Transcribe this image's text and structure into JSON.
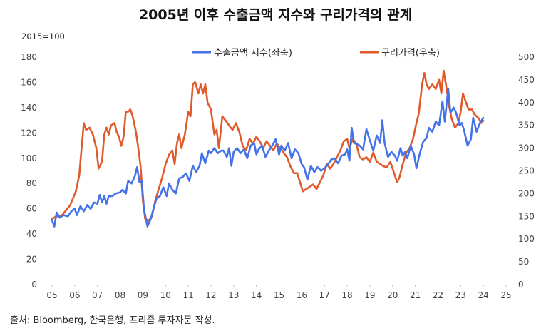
{
  "chart_data": {
    "type": "line",
    "title": "2005년 이후 수출금액 지수와 구리가격의 관계",
    "left_axis_unit": "2015=100",
    "source": "출처: Bloomberg, 한국은행, 프리즘 투자자문 작성.",
    "x_axis": {
      "range": [
        2005,
        2025
      ],
      "ticks": [
        "05",
        "06",
        "07",
        "08",
        "09",
        "10",
        "11",
        "12",
        "13",
        "14",
        "15",
        "16",
        "17",
        "18",
        "19",
        "20",
        "21",
        "22",
        "23",
        "24",
        "25"
      ]
    },
    "y_left": {
      "range": [
        0,
        180
      ],
      "ticks": [
        "0",
        "20",
        "40",
        "60",
        "80",
        "100",
        "120",
        "140",
        "160",
        "180"
      ]
    },
    "y_right": {
      "range": [
        0,
        500
      ],
      "ticks": [
        "0",
        "50",
        "100",
        "150",
        "200",
        "250",
        "300",
        "350",
        "400",
        "450",
        "500"
      ]
    },
    "legend": [
      "수출금액 지수(좌축)",
      "구리가격(우축)"
    ],
    "colors": {
      "export": "#4472E8",
      "copper": "#E05A2B"
    },
    "series": [
      {
        "name": "수출금액 지수(좌축)",
        "axis": "left",
        "points": [
          [
            2005.0,
            51
          ],
          [
            2005.1,
            46
          ],
          [
            2005.2,
            57
          ],
          [
            2005.35,
            53
          ],
          [
            2005.5,
            55
          ],
          [
            2005.7,
            54
          ],
          [
            2005.85,
            58
          ],
          [
            2006.0,
            60
          ],
          [
            2006.1,
            55
          ],
          [
            2006.25,
            62
          ],
          [
            2006.4,
            58
          ],
          [
            2006.55,
            63
          ],
          [
            2006.7,
            60
          ],
          [
            2006.85,
            65
          ],
          [
            2007.0,
            64
          ],
          [
            2007.1,
            71
          ],
          [
            2007.2,
            65
          ],
          [
            2007.3,
            70
          ],
          [
            2007.4,
            64
          ],
          [
            2007.5,
            70
          ],
          [
            2007.65,
            70
          ],
          [
            2007.8,
            72
          ],
          [
            2008.0,
            73
          ],
          [
            2008.1,
            75
          ],
          [
            2008.25,
            72
          ],
          [
            2008.35,
            82
          ],
          [
            2008.5,
            80
          ],
          [
            2008.65,
            86
          ],
          [
            2008.75,
            93
          ],
          [
            2008.85,
            81
          ],
          [
            2008.95,
            82
          ],
          [
            2009.05,
            60
          ],
          [
            2009.2,
            46
          ],
          [
            2009.35,
            52
          ],
          [
            2009.5,
            62
          ],
          [
            2009.6,
            68
          ],
          [
            2009.75,
            70
          ],
          [
            2009.9,
            77
          ],
          [
            2010.05,
            70
          ],
          [
            2010.15,
            80
          ],
          [
            2010.3,
            75
          ],
          [
            2010.45,
            72
          ],
          [
            2010.6,
            84
          ],
          [
            2010.75,
            85
          ],
          [
            2010.9,
            88
          ],
          [
            2011.05,
            82
          ],
          [
            2011.2,
            94
          ],
          [
            2011.35,
            89
          ],
          [
            2011.5,
            94
          ],
          [
            2011.6,
            104
          ],
          [
            2011.75,
            96
          ],
          [
            2011.9,
            106
          ],
          [
            2012.0,
            104
          ],
          [
            2012.15,
            108
          ],
          [
            2012.3,
            104
          ],
          [
            2012.45,
            106
          ],
          [
            2012.55,
            106
          ],
          [
            2012.7,
            101
          ],
          [
            2012.8,
            108
          ],
          [
            2012.9,
            94
          ],
          [
            2013.0,
            105
          ],
          [
            2013.15,
            108
          ],
          [
            2013.3,
            104
          ],
          [
            2013.45,
            107
          ],
          [
            2013.6,
            100
          ],
          [
            2013.75,
            110
          ],
          [
            2013.9,
            112
          ],
          [
            2014.0,
            103
          ],
          [
            2014.1,
            107
          ],
          [
            2014.25,
            110
          ],
          [
            2014.4,
            101
          ],
          [
            2014.55,
            106
          ],
          [
            2014.7,
            110
          ],
          [
            2014.85,
            115
          ],
          [
            2015.0,
            103
          ],
          [
            2015.1,
            110
          ],
          [
            2015.25,
            106
          ],
          [
            2015.4,
            112
          ],
          [
            2015.55,
            100
          ],
          [
            2015.7,
            107
          ],
          [
            2015.85,
            104
          ],
          [
            2016.0,
            95
          ],
          [
            2016.1,
            93
          ],
          [
            2016.25,
            83
          ],
          [
            2016.4,
            94
          ],
          [
            2016.55,
            89
          ],
          [
            2016.7,
            93
          ],
          [
            2016.85,
            90
          ],
          [
            2017.0,
            92
          ],
          [
            2017.15,
            95
          ],
          [
            2017.3,
            99
          ],
          [
            2017.45,
            100
          ],
          [
            2017.6,
            96
          ],
          [
            2017.75,
            102
          ],
          [
            2017.9,
            103
          ],
          [
            2018.0,
            107
          ],
          [
            2018.1,
            98
          ],
          [
            2018.2,
            124
          ],
          [
            2018.3,
            112
          ],
          [
            2018.45,
            111
          ],
          [
            2018.55,
            110
          ],
          [
            2018.7,
            107
          ],
          [
            2018.85,
            123
          ],
          [
            2019.0,
            114
          ],
          [
            2019.15,
            106
          ],
          [
            2019.3,
            118
          ],
          [
            2019.45,
            112
          ],
          [
            2019.55,
            130
          ],
          [
            2019.65,
            112
          ],
          [
            2019.8,
            101
          ],
          [
            2019.95,
            105
          ],
          [
            2020.1,
            102
          ],
          [
            2020.2,
            98
          ],
          [
            2020.35,
            108
          ],
          [
            2020.45,
            102
          ],
          [
            2020.55,
            105
          ],
          [
            2020.65,
            100
          ],
          [
            2020.8,
            110
          ],
          [
            2020.95,
            103
          ],
          [
            2021.05,
            92
          ],
          [
            2021.2,
            104
          ],
          [
            2021.35,
            113
          ],
          [
            2021.5,
            116
          ],
          [
            2021.6,
            124
          ],
          [
            2021.75,
            121
          ],
          [
            2021.9,
            129
          ],
          [
            2022.05,
            126
          ],
          [
            2022.2,
            145
          ],
          [
            2022.3,
            129
          ],
          [
            2022.45,
            155
          ],
          [
            2022.55,
            136
          ],
          [
            2022.7,
            140
          ],
          [
            2022.8,
            136
          ],
          [
            2022.95,
            126
          ],
          [
            2023.05,
            128
          ],
          [
            2023.15,
            122
          ],
          [
            2023.3,
            110
          ],
          [
            2023.45,
            115
          ],
          [
            2023.55,
            132
          ],
          [
            2023.7,
            121
          ],
          [
            2023.85,
            128
          ],
          [
            2024.0,
            132
          ]
        ]
      },
      {
        "name": "구리가격(우축)",
        "axis": "right",
        "points": [
          [
            2005.0,
            145
          ],
          [
            2005.2,
            150
          ],
          [
            2005.4,
            150
          ],
          [
            2005.6,
            162
          ],
          [
            2005.8,
            175
          ],
          [
            2005.95,
            193
          ],
          [
            2006.05,
            205
          ],
          [
            2006.2,
            240
          ],
          [
            2006.3,
            300
          ],
          [
            2006.4,
            355
          ],
          [
            2006.5,
            340
          ],
          [
            2006.65,
            345
          ],
          [
            2006.8,
            330
          ],
          [
            2006.95,
            300
          ],
          [
            2007.05,
            255
          ],
          [
            2007.2,
            270
          ],
          [
            2007.3,
            330
          ],
          [
            2007.4,
            345
          ],
          [
            2007.5,
            330
          ],
          [
            2007.6,
            350
          ],
          [
            2007.75,
            355
          ],
          [
            2007.85,
            335
          ],
          [
            2007.95,
            325
          ],
          [
            2008.05,
            305
          ],
          [
            2008.15,
            325
          ],
          [
            2008.25,
            380
          ],
          [
            2008.35,
            380
          ],
          [
            2008.45,
            385
          ],
          [
            2008.55,
            370
          ],
          [
            2008.7,
            335
          ],
          [
            2008.8,
            300
          ],
          [
            2008.9,
            260
          ],
          [
            2009.0,
            185
          ],
          [
            2009.1,
            145
          ],
          [
            2009.25,
            140
          ],
          [
            2009.4,
            150
          ],
          [
            2009.55,
            185
          ],
          [
            2009.7,
            210
          ],
          [
            2009.85,
            235
          ],
          [
            2010.0,
            265
          ],
          [
            2010.15,
            285
          ],
          [
            2010.3,
            295
          ],
          [
            2010.4,
            265
          ],
          [
            2010.5,
            310
          ],
          [
            2010.6,
            330
          ],
          [
            2010.7,
            300
          ],
          [
            2010.85,
            330
          ],
          [
            2011.0,
            380
          ],
          [
            2011.1,
            370
          ],
          [
            2011.2,
            440
          ],
          [
            2011.3,
            445
          ],
          [
            2011.45,
            420
          ],
          [
            2011.55,
            440
          ],
          [
            2011.65,
            420
          ],
          [
            2011.75,
            440
          ],
          [
            2011.85,
            400
          ],
          [
            2012.0,
            385
          ],
          [
            2012.15,
            330
          ],
          [
            2012.25,
            340
          ],
          [
            2012.35,
            300
          ],
          [
            2012.5,
            370
          ],
          [
            2012.65,
            360
          ],
          [
            2012.8,
            350
          ],
          [
            2012.95,
            340
          ],
          [
            2013.1,
            355
          ],
          [
            2013.25,
            335
          ],
          [
            2013.4,
            305
          ],
          [
            2013.55,
            295
          ],
          [
            2013.7,
            320
          ],
          [
            2013.85,
            310
          ],
          [
            2014.0,
            325
          ],
          [
            2014.15,
            315
          ],
          [
            2014.3,
            300
          ],
          [
            2014.45,
            315
          ],
          [
            2014.6,
            305
          ],
          [
            2014.75,
            295
          ],
          [
            2014.9,
            310
          ],
          [
            2015.05,
            300
          ],
          [
            2015.2,
            290
          ],
          [
            2015.35,
            280
          ],
          [
            2015.5,
            260
          ],
          [
            2015.65,
            245
          ],
          [
            2015.8,
            245
          ],
          [
            2015.95,
            220
          ],
          [
            2016.05,
            205
          ],
          [
            2016.2,
            210
          ],
          [
            2016.35,
            215
          ],
          [
            2016.5,
            220
          ],
          [
            2016.65,
            210
          ],
          [
            2016.8,
            225
          ],
          [
            2016.95,
            240
          ],
          [
            2017.1,
            265
          ],
          [
            2017.25,
            255
          ],
          [
            2017.4,
            265
          ],
          [
            2017.55,
            280
          ],
          [
            2017.7,
            295
          ],
          [
            2017.85,
            315
          ],
          [
            2018.0,
            320
          ],
          [
            2018.1,
            300
          ],
          [
            2018.25,
            320
          ],
          [
            2018.4,
            310
          ],
          [
            2018.55,
            280
          ],
          [
            2018.7,
            275
          ],
          [
            2018.85,
            280
          ],
          [
            2019.0,
            270
          ],
          [
            2019.15,
            290
          ],
          [
            2019.3,
            270
          ],
          [
            2019.45,
            265
          ],
          [
            2019.6,
            260
          ],
          [
            2019.75,
            258
          ],
          [
            2019.9,
            270
          ],
          [
            2020.0,
            255
          ],
          [
            2020.1,
            240
          ],
          [
            2020.2,
            225
          ],
          [
            2020.3,
            235
          ],
          [
            2020.45,
            265
          ],
          [
            2020.6,
            290
          ],
          [
            2020.75,
            300
          ],
          [
            2020.9,
            320
          ],
          [
            2021.05,
            355
          ],
          [
            2021.15,
            375
          ],
          [
            2021.3,
            440
          ],
          [
            2021.4,
            465
          ],
          [
            2021.5,
            440
          ],
          [
            2021.6,
            430
          ],
          [
            2021.75,
            440
          ],
          [
            2021.9,
            430
          ],
          [
            2022.05,
            450
          ],
          [
            2022.15,
            420
          ],
          [
            2022.25,
            470
          ],
          [
            2022.35,
            440
          ],
          [
            2022.5,
            390
          ],
          [
            2022.6,
            365
          ],
          [
            2022.75,
            345
          ],
          [
            2022.9,
            355
          ],
          [
            2023.0,
            380
          ],
          [
            2023.1,
            420
          ],
          [
            2023.2,
            405
          ],
          [
            2023.35,
            385
          ],
          [
            2023.5,
            385
          ],
          [
            2023.6,
            375
          ],
          [
            2023.7,
            370
          ],
          [
            2023.8,
            365
          ],
          [
            2023.9,
            355
          ],
          [
            2024.0,
            360
          ]
        ]
      }
    ]
  }
}
